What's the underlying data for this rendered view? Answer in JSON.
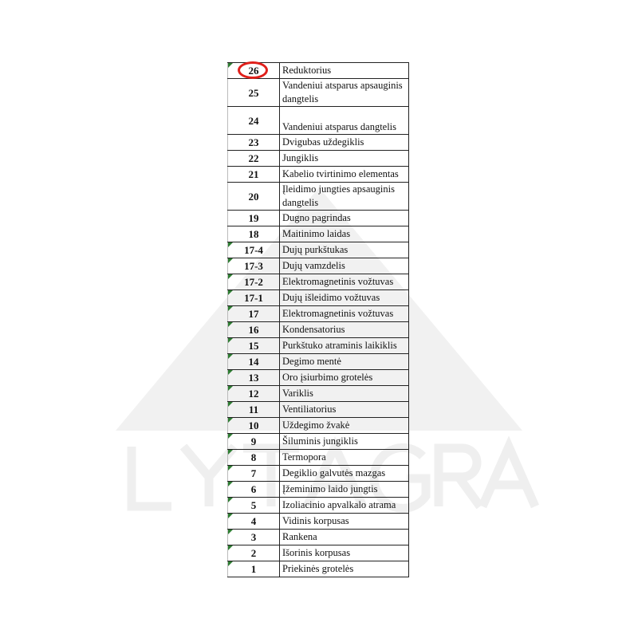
{
  "watermark": {
    "text": "LYTAGRA",
    "color": "#efefef"
  },
  "highlight": {
    "item": "26",
    "color": "#e0201b"
  },
  "parts": [
    {
      "num": "26",
      "name": "Reduktorius"
    },
    {
      "num": "25",
      "name": "Vandeniui atsparus apsauginis dangtelis"
    },
    {
      "num": "24",
      "name": "Vandeniui atsparus dangtelis"
    },
    {
      "num": "23",
      "name": "Dvigubas uždegiklis"
    },
    {
      "num": "22",
      "name": "Jungiklis"
    },
    {
      "num": "21",
      "name": "Kabelio tvirtinimo elementas"
    },
    {
      "num": "20",
      "name": "Įleidimo jungties apsauginis dangtelis"
    },
    {
      "num": "19",
      "name": "Dugno pagrindas"
    },
    {
      "num": "18",
      "name": "Maitinimo laidas"
    },
    {
      "num": "17-4",
      "name": "Dujų purkštukas"
    },
    {
      "num": "17-3",
      "name": "Dujų vamzdelis"
    },
    {
      "num": "17-2",
      "name": "Elektromagnetinis vožtuvas"
    },
    {
      "num": "17-1",
      "name": "Dujų išleidimo vožtuvas"
    },
    {
      "num": "17",
      "name": "Elektromagnetinis vožtuvas"
    },
    {
      "num": "16",
      "name": "Kondensatorius"
    },
    {
      "num": "15",
      "name": "Purkštuko atraminis laikiklis"
    },
    {
      "num": "14",
      "name": "Degimo mentė"
    },
    {
      "num": "13",
      "name": "Oro įsiurbimo grotelės"
    },
    {
      "num": "12",
      "name": "Variklis"
    },
    {
      "num": "11",
      "name": "Ventiliatorius"
    },
    {
      "num": "10",
      "name": "Uždegimo žvakė"
    },
    {
      "num": "9",
      "name": "Šiluminis jungiklis"
    },
    {
      "num": "8",
      "name": "Termopora"
    },
    {
      "num": "7",
      "name": "Degiklio galvutės mazgas"
    },
    {
      "num": "6",
      "name": "Įžeminimo laido jungtis"
    },
    {
      "num": "5",
      "name": "Izoliacinio apvalkalo atrama"
    },
    {
      "num": "4",
      "name": "Vidinis korpusas"
    },
    {
      "num": "3",
      "name": "Rankena"
    },
    {
      "num": "2",
      "name": "Išorinis korpusas"
    },
    {
      "num": "1",
      "name": "Priekinės grotelės"
    }
  ]
}
